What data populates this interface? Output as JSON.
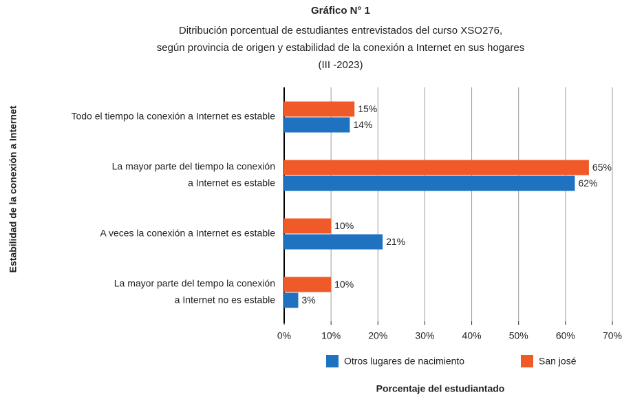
{
  "chart_data": {
    "type": "bar",
    "orientation": "horizontal",
    "title": "Gráfico N° 1",
    "subtitle": [
      "Ditribución porcentual de estudiantes entrevistados del curso XSO276,",
      "según provincia de origen y estabilidad de la conexión a Internet en sus hogares",
      "(III -2023)"
    ],
    "x_label": "Porcentaje del estudiantado",
    "y_label": "Estabilidad de la conexión a Internet",
    "categories": [
      [
        "Todo el tiempo la conexión a Internet es estable"
      ],
      [
        "La mayor parte del tiempo la conexión",
        "a Internet es estable"
      ],
      [
        "A veces la conexión a Internet es estable"
      ],
      [
        "La mayor parte del tempo la conexión",
        "a Internet no es estable"
      ]
    ],
    "series": [
      {
        "name": "Otros lugares de nacimiento",
        "color": "#1f72c0",
        "values": [
          14,
          62,
          21,
          3
        ],
        "value_labels": [
          "14%",
          "62%",
          "21%",
          "3%"
        ]
      },
      {
        "name": "San josé",
        "color": "#f05a28",
        "values": [
          15,
          65,
          10,
          10
        ],
        "value_labels": [
          "15%",
          "65%",
          "10%",
          "10%"
        ]
      }
    ],
    "xlim": [
      0,
      70
    ],
    "xticks": [
      {
        "value": 0,
        "label": "0%"
      },
      {
        "value": 10,
        "label": "10%"
      },
      {
        "value": 20,
        "label": "20%"
      },
      {
        "value": 30,
        "label": "30%"
      },
      {
        "value": 40,
        "label": "40%"
      },
      {
        "value": 50,
        "label": "50%"
      },
      {
        "value": 60,
        "label": "60%"
      },
      {
        "value": 70,
        "label": "70%"
      }
    ],
    "grid": true,
    "legend": "bottom"
  }
}
